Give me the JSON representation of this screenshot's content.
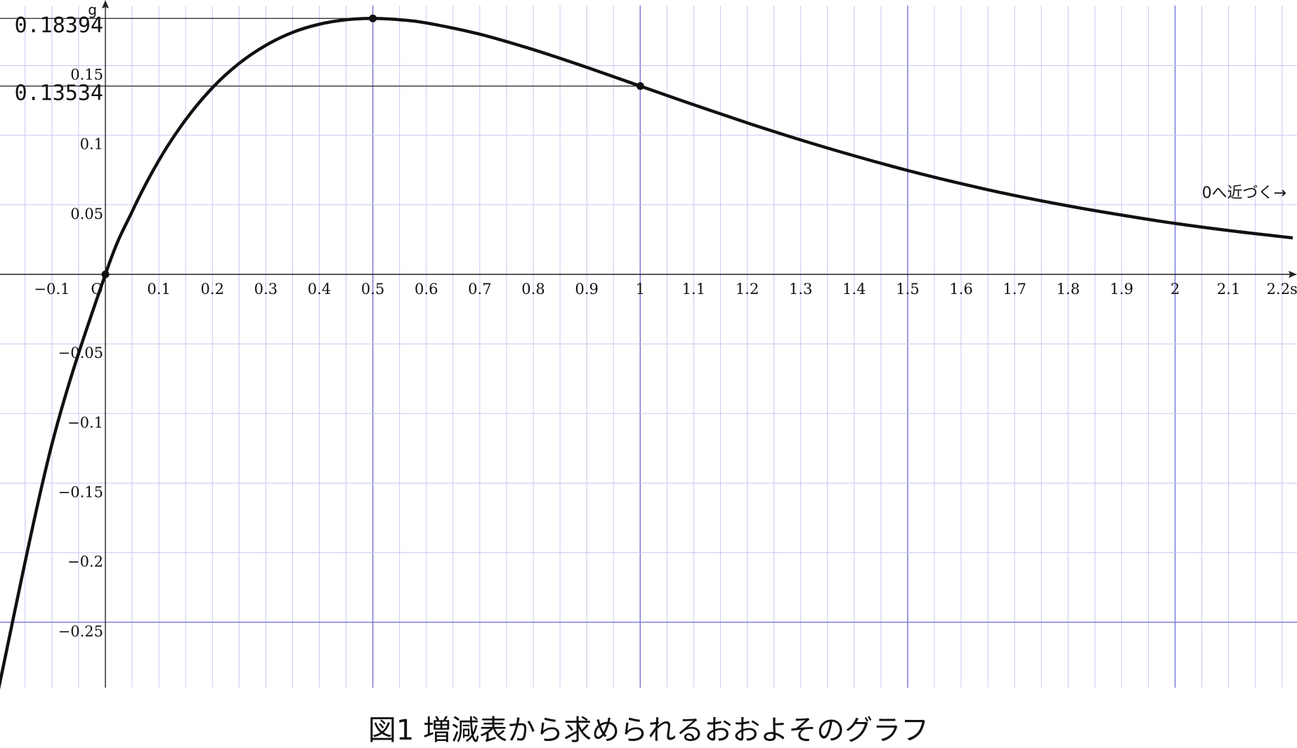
{
  "caption": "図1 増減表から求められるおおよそのグラフ",
  "chart_data": {
    "type": "line",
    "xlim": [
      -0.2,
      2.22
    ],
    "ylim": [
      -0.3,
      0.19
    ],
    "x_ticks": [
      -0.1,
      0,
      0.1,
      0.2,
      0.3,
      0.4,
      0.5,
      0.6,
      0.7,
      0.8,
      0.9,
      1,
      1.1,
      1.2,
      1.3,
      1.4,
      1.5,
      1.6,
      1.7,
      1.8,
      1.9,
      2,
      2.1,
      2.2
    ],
    "x_tick_labels": [
      "−0.1",
      "O",
      "0.1",
      "0.2",
      "0.3",
      "0.4",
      "0.5",
      "0.6",
      "0.7",
      "0.8",
      "0.9",
      "1",
      "1.1",
      "1.2",
      "1.3",
      "1.4",
      "1.5",
      "1.6",
      "1.7",
      "1.8",
      "1.9",
      "2",
      "2.1",
      "2.2s"
    ],
    "y_ticks": [
      0.15,
      0.1,
      0.05,
      -0.05,
      -0.1,
      -0.15,
      -0.2,
      -0.25
    ],
    "y_tick_labels": [
      "0.15",
      "0.1",
      "0.05",
      "−0.05",
      "−0.1",
      "−0.15",
      "−0.2",
      "−0.25"
    ],
    "y_axis_label": "g",
    "grid": true,
    "grid_step": 0.05,
    "highlight_x": [
      0.5,
      1,
      1.5,
      2
    ],
    "series": [
      {
        "points": [
          [
            -0.2,
            -0.2984
          ],
          [
            -0.1,
            -0.1221
          ],
          [
            0,
            0
          ],
          [
            0.05,
            0.0452
          ],
          [
            0.1,
            0.0819
          ],
          [
            0.15,
            0.1111
          ],
          [
            0.2,
            0.1341
          ],
          [
            0.25,
            0.1516
          ],
          [
            0.3,
            0.1646
          ],
          [
            0.35,
            0.1739
          ],
          [
            0.4,
            0.1798
          ],
          [
            0.45,
            0.183
          ],
          [
            0.5,
            0.1839
          ],
          [
            0.55,
            0.183
          ],
          [
            0.6,
            0.1807
          ],
          [
            0.7,
            0.1726
          ],
          [
            0.8,
            0.1615
          ],
          [
            0.9,
            0.1488
          ],
          [
            1,
            0.1353
          ],
          [
            1.1,
            0.1219
          ],
          [
            1.2,
            0.1089
          ],
          [
            1.3,
            0.0966
          ],
          [
            1.4,
            0.0852
          ],
          [
            1.5,
            0.0747
          ],
          [
            1.6,
            0.0652
          ],
          [
            1.7,
            0.0567
          ],
          [
            1.8,
            0.0492
          ],
          [
            1.9,
            0.0426
          ],
          [
            2,
            0.0366
          ],
          [
            2.1,
            0.0315
          ],
          [
            2.22,
            0.0262
          ]
        ]
      }
    ],
    "marked_points": [
      {
        "x": 0,
        "y": 0
      },
      {
        "x": 0.5,
        "y": 0.18394
      },
      {
        "x": 1,
        "y": 0.13534
      }
    ],
    "reference_lines": [
      {
        "y": 0.18394,
        "x_to": 0.5,
        "label": "0.18394"
      },
      {
        "y": 0.13534,
        "x_to": 1,
        "label": "0.13534"
      }
    ],
    "annotation": {
      "text": "0へ近づく→",
      "x": 2.05,
      "y": 0.055
    }
  }
}
